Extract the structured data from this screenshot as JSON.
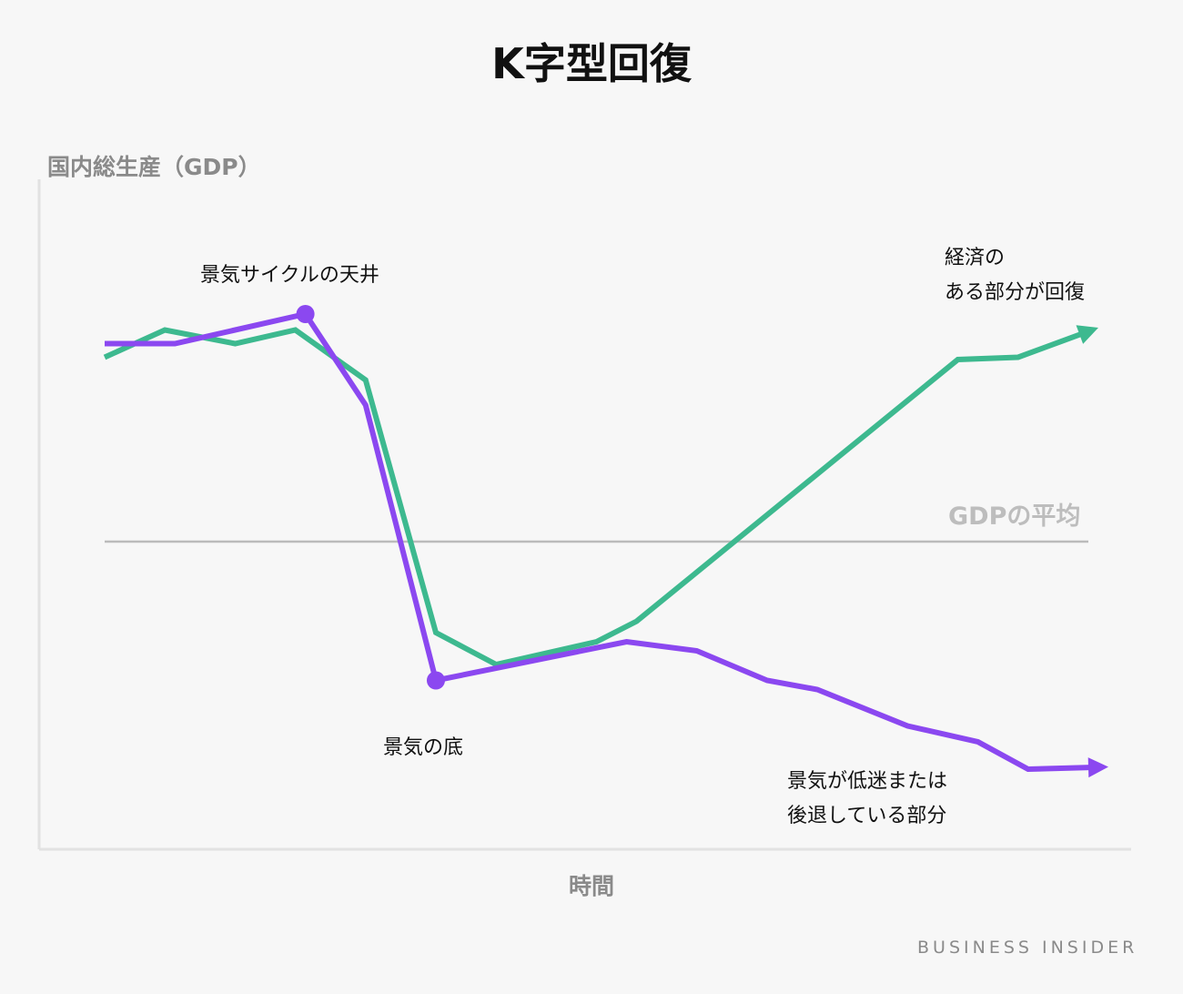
{
  "chart_data": {
    "type": "line",
    "title": "K字型回復",
    "ylabel": "国内総生産（GDP）",
    "xlabel": "時間",
    "xlim": [
      0,
      100
    ],
    "ylim": [
      -110,
      110
    ],
    "grid": false,
    "reference_line": {
      "label": "GDPの平均",
      "y": 0,
      "color": "#bbbbbb"
    },
    "series": [
      {
        "key": "recovering",
        "color": "#3db98f",
        "arrow_end": true,
        "x": [
          0,
          6,
          13,
          19,
          26,
          33,
          39,
          49,
          53,
          85,
          91,
          99
        ],
        "y": [
          81,
          93,
          87,
          93,
          71,
          -40,
          -54,
          -44,
          -35,
          80,
          81,
          94
        ]
      },
      {
        "key": "declining",
        "color": "#8b48f0",
        "arrow_end": true,
        "markers_at": [
          2,
          4
        ],
        "x": [
          0,
          7,
          20,
          26,
          33,
          52,
          59,
          66,
          71,
          80,
          87,
          92,
          100
        ],
        "y": [
          87,
          87,
          100,
          60,
          -61,
          -44,
          -48,
          -61,
          -65,
          -81,
          -88,
          -100,
          -99
        ]
      }
    ],
    "annotations": {
      "peak": "景気サイクルの天井",
      "trough": "景気の底",
      "up_line1": "経済の",
      "up_line2": "ある部分が回復",
      "down_line1": "景気が低迷または",
      "down_line2": "後退している部分"
    }
  },
  "brand": "BUSINESS INSIDER",
  "colors": {
    "background": "#f7f7f7",
    "axis": "#e2e2e2"
  }
}
